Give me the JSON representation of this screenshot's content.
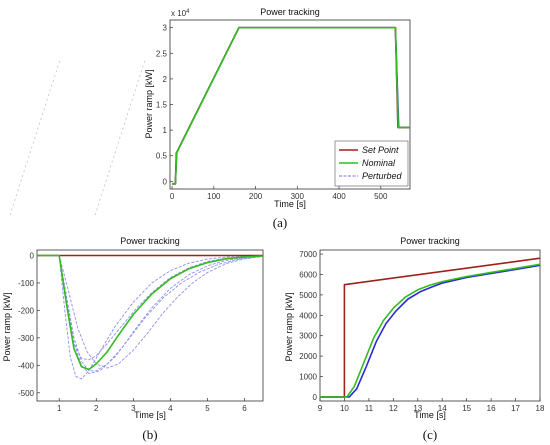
{
  "chart_data": [
    {
      "id": "a",
      "type": "line",
      "panel_label": "(a)",
      "title": "Power tracking",
      "xlabel": "Time [s]",
      "ylabel": "Power ramp [kW]",
      "exponent_label": "x 10",
      "exponent_power": "4",
      "xlim": [
        -5,
        570
      ],
      "ylim": [
        -0.15,
        3.15
      ],
      "xticks": [
        0,
        100,
        200,
        300,
        400,
        500
      ],
      "yticks": [
        0,
        0.5,
        1,
        1.5,
        2,
        2.5,
        3
      ],
      "ytick_labels": [
        "0",
        "0.5",
        "1",
        "1.5",
        "2",
        "2.5",
        "3"
      ],
      "legend": {
        "position": "bottom-right",
        "entries": [
          "Set Point",
          "Nominal",
          "Perturbed"
        ]
      },
      "series": [
        {
          "name": "Set Point",
          "color": "#a0201a",
          "x": [
            0,
            8,
            10,
            160,
            535,
            541,
            570
          ],
          "y": [
            -0.05,
            -0.05,
            0.55,
            3.0,
            3.0,
            1.05,
            1.05
          ]
        },
        {
          "name": "Nominal",
          "color": "#33bb22",
          "x": [
            0,
            8,
            11,
            160,
            535,
            542,
            570
          ],
          "y": [
            -0.05,
            -0.04,
            0.56,
            3.0,
            3.0,
            1.05,
            1.05
          ]
        },
        {
          "name": "Perturbed",
          "color": "#2a2ad8",
          "x": [
            0,
            8,
            11,
            160,
            535,
            543,
            570
          ],
          "y": [
            -0.05,
            -0.04,
            0.56,
            3.0,
            3.0,
            1.05,
            1.05
          ]
        }
      ]
    },
    {
      "id": "b",
      "type": "line",
      "panel_label": "(b)",
      "title": "Power tracking",
      "xlabel": "Time [s]",
      "ylabel": "Power ramp [kW]",
      "xlim": [
        0.4,
        6.5
      ],
      "ylim": [
        -530,
        20
      ],
      "xticks": [
        1,
        2,
        3,
        4,
        5,
        6
      ],
      "yticks": [
        0,
        -100,
        -200,
        -300,
        -400,
        -500
      ],
      "series": [
        {
          "name": "Set Point",
          "color": "#a0201a",
          "x": [
            0.4,
            6.5
          ],
          "y": [
            0,
            0
          ]
        },
        {
          "name": "Nominal",
          "color": "#33bb22",
          "x": [
            0.4,
            1.0,
            1.2,
            1.4,
            1.6,
            1.8,
            2.0,
            2.3,
            2.6,
            3.0,
            3.5,
            4.0,
            4.5,
            5.0,
            5.5,
            6.0,
            6.5
          ],
          "y": [
            0,
            0,
            -180,
            -340,
            -405,
            -415,
            -395,
            -350,
            -290,
            -215,
            -140,
            -85,
            -48,
            -26,
            -12,
            -5,
            -2
          ]
        },
        {
          "name": "Perturbed",
          "color": "#8f8ff0",
          "curves": [
            {
              "x": [
                0.4,
                1.0,
                1.15,
                1.3,
                1.45,
                1.6,
                1.8,
                2.1,
                2.5,
                3.0,
                3.5,
                4.0,
                4.5,
                5.0,
                5.5,
                6.0,
                6.5
              ],
              "y": [
                0,
                0,
                -200,
                -370,
                -440,
                -450,
                -420,
                -350,
                -260,
                -170,
                -100,
                -55,
                -28,
                -13,
                -6,
                -2,
                -1
              ]
            },
            {
              "x": [
                0.4,
                1.0,
                1.2,
                1.4,
                1.6,
                1.8,
                2.0,
                2.3,
                2.7,
                3.1,
                3.5,
                4.0,
                4.5,
                5.0,
                5.5,
                6.0,
                6.5
              ],
              "y": [
                0,
                0,
                -150,
                -300,
                -385,
                -420,
                -420,
                -395,
                -335,
                -260,
                -190,
                -120,
                -70,
                -38,
                -18,
                -8,
                -3
              ]
            },
            {
              "x": [
                0.4,
                1.0,
                1.25,
                1.5,
                1.75,
                2.0,
                2.3,
                2.6,
                3.0,
                3.4,
                3.8,
                4.2,
                4.6,
                5.0,
                5.5,
                6.0,
                6.5
              ],
              "y": [
                0,
                0,
                -130,
                -265,
                -350,
                -395,
                -410,
                -395,
                -345,
                -280,
                -210,
                -150,
                -100,
                -62,
                -30,
                -12,
                -4
              ]
            },
            {
              "x": [
                0.4,
                1.0,
                1.2,
                1.4,
                1.6,
                1.8,
                2.0,
                2.3,
                2.7,
                3.1,
                3.5,
                4.0,
                4.5,
                5.0,
                5.5,
                6.0,
                6.5
              ],
              "y": [
                0,
                0,
                -175,
                -320,
                -375,
                -380,
                -365,
                -320,
                -255,
                -190,
                -135,
                -80,
                -45,
                -22,
                -10,
                -4,
                -1
              ]
            },
            {
              "x": [
                0.4,
                1.0,
                1.2,
                1.4,
                1.6,
                1.8,
                2.1,
                2.5,
                2.9,
                3.3,
                3.8,
                4.3,
                4.8,
                5.3,
                5.8,
                6.2,
                6.5
              ],
              "y": [
                0,
                0,
                -160,
                -320,
                -400,
                -430,
                -420,
                -370,
                -300,
                -230,
                -155,
                -100,
                -60,
                -32,
                -15,
                -7,
                -3
              ]
            }
          ]
        }
      ]
    },
    {
      "id": "c",
      "type": "line",
      "panel_label": "(c)",
      "title": "Power tracking",
      "xlabel": "Time [s]",
      "ylabel": "Power ramp [kW]",
      "xlim": [
        9,
        18
      ],
      "ylim": [
        -200,
        7200
      ],
      "xticks": [
        9,
        10,
        11,
        12,
        13,
        14,
        15,
        16,
        17,
        18
      ],
      "yticks": [
        0,
        1000,
        2000,
        3000,
        4000,
        5000,
        6000,
        7000
      ],
      "series": [
        {
          "name": "Set Point",
          "color": "#a0201a",
          "x": [
            9,
            10,
            10,
            18
          ],
          "y": [
            0,
            0,
            5500,
            6800
          ]
        },
        {
          "name": "Nominal",
          "color": "#33bb22",
          "x": [
            9,
            10.1,
            10.4,
            10.8,
            11.2,
            11.6,
            12.0,
            12.5,
            13.0,
            13.5,
            14.0,
            15.0,
            16.0,
            17.0,
            18.0
          ],
          "y": [
            0,
            0,
            500,
            1700,
            2900,
            3750,
            4350,
            4900,
            5250,
            5480,
            5650,
            5900,
            6100,
            6300,
            6500
          ]
        },
        {
          "name": "Perturbed",
          "color": "#2a2ad8",
          "x": [
            9,
            10.2,
            10.5,
            10.9,
            11.3,
            11.7,
            12.1,
            12.6,
            13.1,
            13.6,
            14.0,
            15.0,
            16.0,
            17.0,
            18.0
          ],
          "y": [
            0,
            0,
            400,
            1500,
            2700,
            3600,
            4200,
            4800,
            5150,
            5400,
            5580,
            5850,
            6050,
            6250,
            6450
          ]
        }
      ]
    }
  ]
}
